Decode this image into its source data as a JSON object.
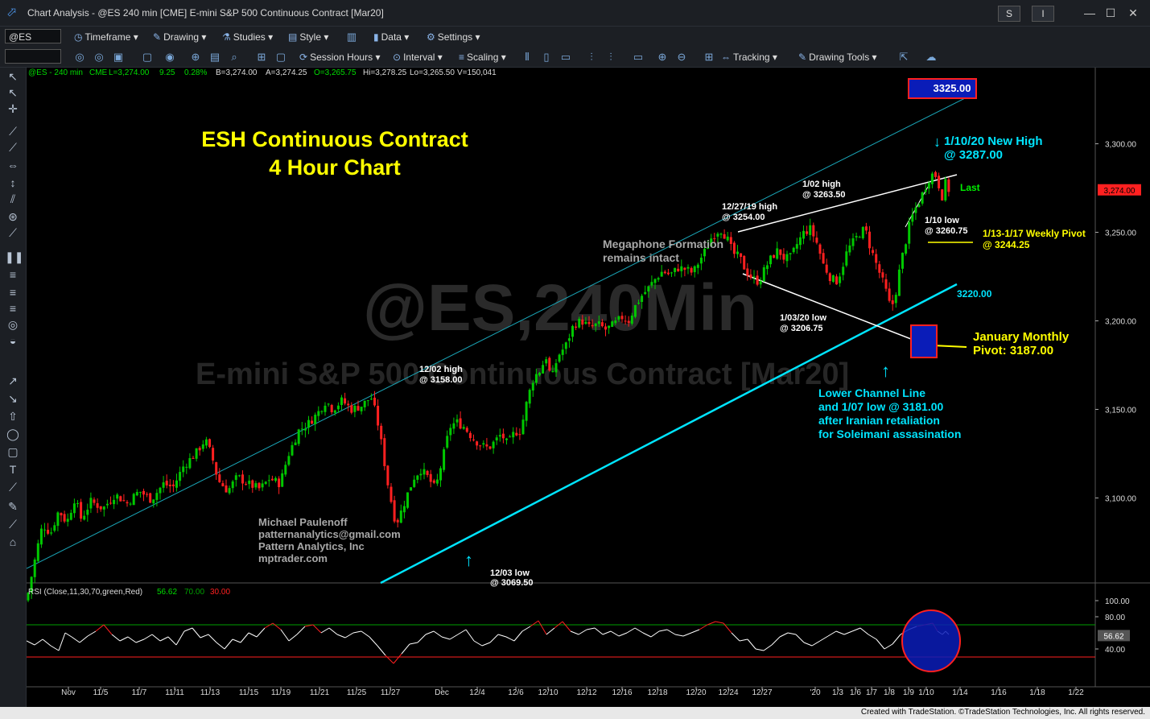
{
  "window": {
    "title": "Chart Analysis - @ES 240 min [CME] E-mini S&P 500 Continuous Contract [Mar20]",
    "s_button": "S",
    "i_button": "I"
  },
  "toolbar1": {
    "symbol": "@ES",
    "timeframe": "Timeframe",
    "drawing": "Drawing",
    "studies": "Studies",
    "style": "Style",
    "data": "Data",
    "settings": "Settings"
  },
  "toolbar2": {
    "session_hours": "Session Hours",
    "interval": "Interval",
    "scaling": "Scaling",
    "tracking": "Tracking",
    "drawing_tools": "Drawing Tools"
  },
  "status_line": {
    "symbol": "@ES - 240 min",
    "exchange": "CME",
    "last": "L=3,274.00",
    "change": "9.25",
    "pct": "0.28%",
    "bid": "B=3,274.00",
    "ask": "A=3,274.25",
    "open": "O=3,265.75",
    "high": "Hi=3,278.25",
    "low": "Lo=3,265.50",
    "volume": "V=150,041"
  },
  "watermark": {
    "symbol": "@ES,240Min",
    "description": "E-mini S&P 500 Continuous Contract [Mar20]"
  },
  "chart_data": {
    "type": "candlestick",
    "title": "ESH Continuous Contract",
    "subtitle": "4 Hour Chart",
    "price_axis": [
      "3,300.00",
      "3,250.00",
      "3,200.00",
      "3,150.00",
      "3,100.00"
    ],
    "price_values": [
      3300,
      3250,
      3200,
      3150,
      3100
    ],
    "ylim": [
      3052,
      3343
    ],
    "last_price": "3,274.00",
    "last_value": 3274,
    "target_box": "3325.00",
    "target_value": 3325,
    "x_labels": [
      "Nov",
      "11/5",
      "11/7",
      "11/11",
      "11/13",
      "11/15",
      "11/19",
      "11/21",
      "11/25",
      "11/27",
      "Dec",
      "12/4",
      "12/6",
      "12/10",
      "12/12",
      "12/16",
      "12/18",
      "12/20",
      "12/24",
      "12/27",
      "'20",
      "1/3",
      "1/6",
      "1/7",
      "1/8",
      "1/9",
      "1/10",
      "1/14",
      "1/16",
      "1/18",
      "1/22"
    ],
    "price_path": [
      [
        0,
        3042
      ],
      [
        8,
        3060
      ],
      [
        14,
        3073
      ],
      [
        20,
        3085
      ],
      [
        30,
        3080
      ],
      [
        40,
        3093
      ],
      [
        50,
        3086
      ],
      [
        60,
        3100
      ],
      [
        68,
        3088
      ],
      [
        80,
        3098
      ],
      [
        95,
        3094
      ],
      [
        110,
        3102
      ],
      [
        125,
        3097
      ],
      [
        140,
        3104
      ],
      [
        155,
        3099
      ],
      [
        170,
        3108
      ],
      [
        182,
        3106
      ],
      [
        195,
        3118
      ],
      [
        210,
        3125
      ],
      [
        222,
        3133
      ],
      [
        230,
        3124
      ],
      [
        238,
        3110
      ],
      [
        250,
        3104
      ],
      [
        262,
        3112
      ],
      [
        275,
        3108
      ],
      [
        290,
        3105
      ],
      [
        302,
        3111
      ],
      [
        315,
        3108
      ],
      [
        325,
        3124
      ],
      [
        338,
        3138
      ],
      [
        350,
        3142
      ],
      [
        362,
        3148
      ],
      [
        372,
        3155
      ],
      [
        380,
        3150
      ],
      [
        392,
        3155
      ],
      [
        404,
        3150
      ],
      [
        416,
        3152
      ],
      [
        428,
        3157
      ],
      [
        435,
        3146
      ],
      [
        442,
        3128
      ],
      [
        448,
        3110
      ],
      [
        454,
        3096
      ],
      [
        459,
        3085
      ],
      [
        466,
        3093
      ],
      [
        474,
        3103
      ],
      [
        482,
        3112
      ],
      [
        490,
        3116
      ],
      [
        498,
        3112
      ],
      [
        508,
        3105
      ],
      [
        518,
        3124
      ],
      [
        526,
        3140
      ],
      [
        534,
        3143
      ],
      [
        544,
        3140
      ],
      [
        554,
        3134
      ],
      [
        564,
        3130
      ],
      [
        574,
        3128
      ],
      [
        582,
        3132
      ],
      [
        590,
        3136
      ],
      [
        598,
        3130
      ],
      [
        606,
        3137
      ],
      [
        614,
        3138
      ],
      [
        622,
        3155
      ],
      [
        630,
        3168
      ],
      [
        638,
        3172
      ],
      [
        646,
        3180
      ],
      [
        652,
        3166
      ],
      [
        660,
        3180
      ],
      [
        670,
        3186
      ],
      [
        680,
        3198
      ],
      [
        690,
        3200
      ],
      [
        700,
        3196
      ],
      [
        710,
        3198
      ],
      [
        720,
        3195
      ],
      [
        730,
        3198
      ],
      [
        740,
        3202
      ],
      [
        748,
        3200
      ],
      [
        756,
        3208
      ],
      [
        764,
        3214
      ],
      [
        772,
        3218
      ],
      [
        780,
        3223
      ],
      [
        790,
        3228
      ],
      [
        800,
        3226
      ],
      [
        810,
        3230
      ],
      [
        820,
        3229
      ],
      [
        828,
        3227
      ],
      [
        836,
        3234
      ],
      [
        844,
        3240
      ],
      [
        852,
        3248
      ],
      [
        862,
        3252
      ],
      [
        870,
        3247
      ],
      [
        878,
        3238
      ],
      [
        886,
        3236
      ],
      [
        894,
        3228
      ],
      [
        902,
        3224
      ],
      [
        910,
        3222
      ],
      [
        918,
        3230
      ],
      [
        926,
        3236
      ],
      [
        934,
        3240
      ],
      [
        942,
        3235
      ],
      [
        950,
        3236
      ],
      [
        958,
        3244
      ],
      [
        966,
        3250
      ],
      [
        974,
        3252
      ],
      [
        982,
        3244
      ],
      [
        990,
        3232
      ],
      [
        998,
        3225
      ],
      [
        1006,
        3222
      ],
      [
        1012,
        3228
      ],
      [
        1020,
        3240
      ],
      [
        1028,
        3245
      ],
      [
        1036,
        3250
      ],
      [
        1042,
        3252
      ],
      [
        1048,
        3242
      ],
      [
        1056,
        3232
      ],
      [
        1064,
        3222
      ],
      [
        1070,
        3214
      ],
      [
        1074,
        3206
      ],
      [
        1080,
        3216
      ],
      [
        1086,
        3232
      ],
      [
        1092,
        3244
      ],
      [
        1098,
        3256
      ],
      [
        1104,
        3263
      ],
      [
        1110,
        3268
      ],
      [
        1116,
        3275
      ],
      [
        1122,
        3281
      ],
      [
        1128,
        3284
      ],
      [
        1132,
        3279
      ],
      [
        1138,
        3270
      ],
      [
        1142,
        3278
      ],
      [
        1146,
        3274
      ]
    ],
    "candle_step_px": 4.1,
    "rsi": {
      "label": "RSI (Close,11,30,70,green,Red)",
      "value": "56.62",
      "level_70": "70.00",
      "level_30": "30.00",
      "axis": [
        "100.00",
        "80.00",
        "40.00"
      ],
      "axis_values": [
        100,
        80,
        40
      ],
      "current_value": 56.62,
      "path": [
        [
          0,
          50
        ],
        [
          10,
          45
        ],
        [
          20,
          52
        ],
        [
          30,
          44
        ],
        [
          40,
          38
        ],
        [
          48,
          60
        ],
        [
          56,
          55
        ],
        [
          66,
          48
        ],
        [
          76,
          56
        ],
        [
          86,
          62
        ],
        [
          96,
          70
        ],
        [
          106,
          58
        ],
        [
          116,
          50
        ],
        [
          126,
          55
        ],
        [
          136,
          48
        ],
        [
          146,
          52
        ],
        [
          156,
          58
        ],
        [
          166,
          50
        ],
        [
          176,
          55
        ],
        [
          186,
          45
        ],
        [
          196,
          62
        ],
        [
          206,
          66
        ],
        [
          216,
          54
        ],
        [
          226,
          58
        ],
        [
          236,
          48
        ],
        [
          246,
          40
        ],
        [
          256,
          52
        ],
        [
          266,
          48
        ],
        [
          276,
          60
        ],
        [
          286,
          55
        ],
        [
          296,
          66
        ],
        [
          306,
          72
        ],
        [
          316,
          64
        ],
        [
          326,
          50
        ],
        [
          336,
          58
        ],
        [
          346,
          68
        ],
        [
          356,
          70
        ],
        [
          366,
          60
        ],
        [
          376,
          66
        ],
        [
          386,
          58
        ],
        [
          396,
          54
        ],
        [
          406,
          60
        ],
        [
          416,
          62
        ],
        [
          426,
          55
        ],
        [
          436,
          44
        ],
        [
          446,
          32
        ],
        [
          456,
          22
        ],
        [
          466,
          34
        ],
        [
          476,
          46
        ],
        [
          486,
          48
        ],
        [
          496,
          58
        ],
        [
          506,
          62
        ],
        [
          516,
          55
        ],
        [
          526,
          52
        ],
        [
          536,
          58
        ],
        [
          546,
          64
        ],
        [
          556,
          50
        ],
        [
          566,
          44
        ],
        [
          576,
          48
        ],
        [
          586,
          58
        ],
        [
          596,
          55
        ],
        [
          606,
          50
        ],
        [
          616,
          62
        ],
        [
          626,
          68
        ],
        [
          636,
          75
        ],
        [
          646,
          58
        ],
        [
          656,
          66
        ],
        [
          666,
          74
        ],
        [
          676,
          62
        ],
        [
          686,
          58
        ],
        [
          696,
          64
        ],
        [
          706,
          66
        ],
        [
          716,
          58
        ],
        [
          726,
          62
        ],
        [
          736,
          56
        ],
        [
          746,
          60
        ],
        [
          756,
          66
        ],
        [
          766,
          60
        ],
        [
          776,
          55
        ],
        [
          786,
          62
        ],
        [
          796,
          64
        ],
        [
          806,
          58
        ],
        [
          816,
          56
        ],
        [
          826,
          60
        ],
        [
          836,
          64
        ],
        [
          846,
          70
        ],
        [
          856,
          74
        ],
        [
          866,
          72
        ],
        [
          876,
          60
        ],
        [
          886,
          50
        ],
        [
          896,
          52
        ],
        [
          906,
          40
        ],
        [
          916,
          38
        ],
        [
          926,
          45
        ],
        [
          936,
          55
        ],
        [
          946,
          60
        ],
        [
          956,
          58
        ],
        [
          966,
          48
        ],
        [
          976,
          44
        ],
        [
          986,
          50
        ],
        [
          996,
          56
        ],
        [
          1006,
          62
        ],
        [
          1016,
          58
        ],
        [
          1026,
          62
        ],
        [
          1036,
          66
        ],
        [
          1046,
          58
        ],
        [
          1056,
          52
        ],
        [
          1066,
          40
        ],
        [
          1076,
          46
        ],
        [
          1086,
          58
        ],
        [
          1096,
          64
        ],
        [
          1106,
          68
        ],
        [
          1116,
          70
        ],
        [
          1126,
          72
        ],
        [
          1132,
          62
        ],
        [
          1138,
          58
        ],
        [
          1142,
          62
        ],
        [
          1146,
          58
        ]
      ]
    }
  },
  "annotations": {
    "new_high": "1/10/20 New High",
    "new_high_val": "@ 3287.00",
    "last_tag": "Last",
    "high_0102": "1/02 high",
    "high_0102_val": "@ 3263.50",
    "high_1227": "12/27/19 high",
    "high_1227_val": "@ 3254.00",
    "low_0110": "1/10 low",
    "low_0110_val": "@ 3260.75",
    "weekly_pivot": "1/13-1/17 Weekly Pivot",
    "weekly_pivot_val": "@ 3244.25",
    "megaphone_1": "Megaphone Formation",
    "megaphone_2": "remains intact",
    "channel_3220": "3220.00",
    "low_0103": "1/03/20 low",
    "low_0103_val": "@ 3206.75",
    "monthly_pivot_1": "January Monthly",
    "monthly_pivot_2": "Pivot: 3187.00",
    "high_1202": "12/02 high",
    "high_1202_val": "@ 3158.00",
    "lower_channel_1": "Lower Channel Line",
    "lower_channel_2": "and 1/07 low @ 3181.00",
    "lower_channel_3": "after Iranian retaliation",
    "lower_channel_4": "for Soleimani assasination",
    "author_1": "Michael Paulenoff",
    "author_2": "patternanalytics@gmail.com",
    "author_3": "Pattern Analytics, Inc",
    "author_4": "mptrader.com",
    "low_1203": "12/03 low",
    "low_1203_val": "@ 3069.50"
  },
  "footer": "Created with TradeStation. ©TradeStation Technologies, Inc. All rights reserved.",
  "colors": {
    "up": "#00c800",
    "down": "#ff2020",
    "title_yellow": "#ffff00",
    "cyan": "#00e5ff",
    "rsi_green": "#00a000",
    "rsi_red": "#ff2020"
  }
}
